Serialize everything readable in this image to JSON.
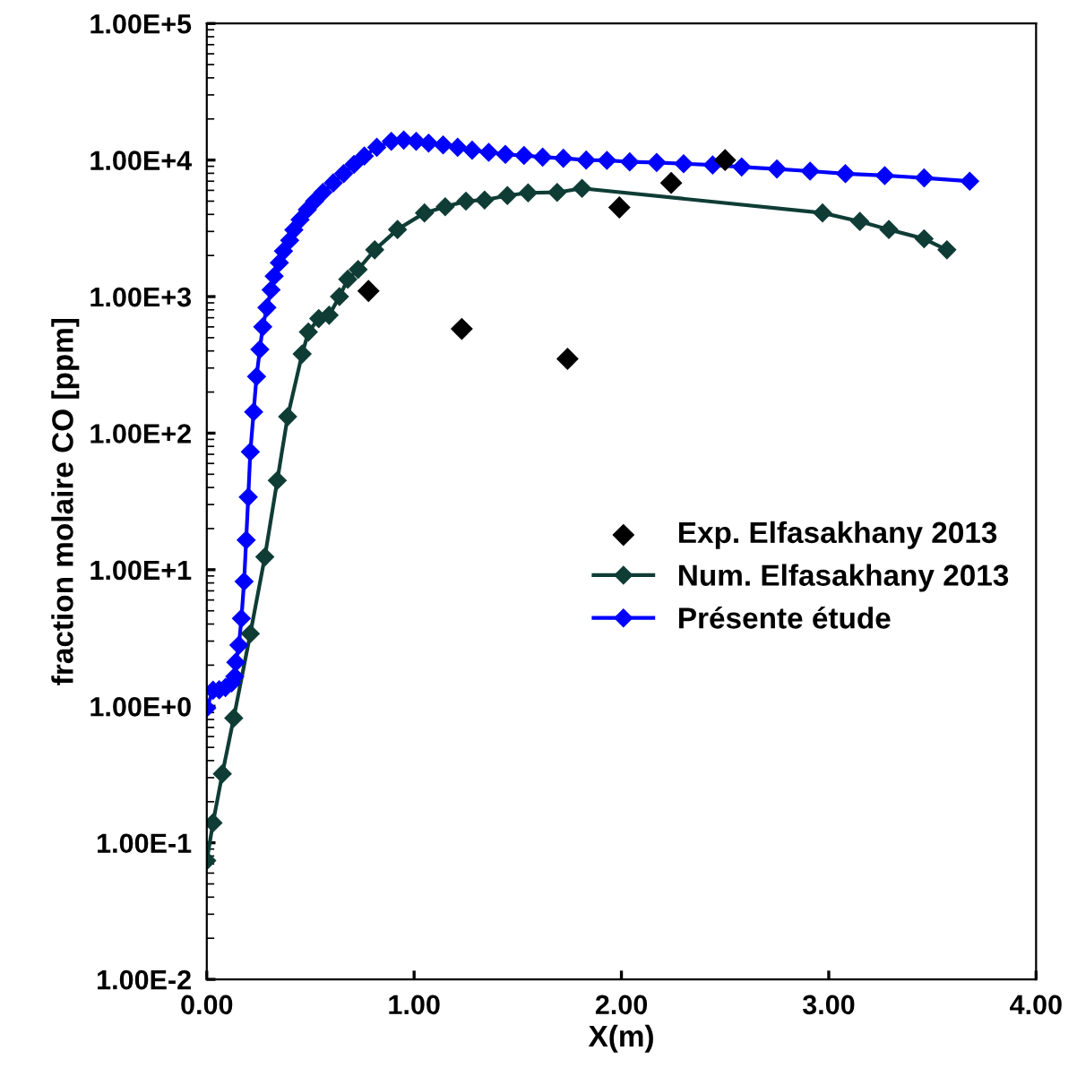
{
  "chart_data": {
    "type": "line",
    "xlabel": "X(m)",
    "ylabel": "fraction molaire CO [ppm]",
    "log": "y",
    "marker": "diamond",
    "legend": "right",
    "grid": false,
    "xlim": [
      0,
      4
    ],
    "xticks": [
      {
        "value": 0,
        "label": "0.00"
      },
      {
        "value": 1,
        "label": "1.00"
      },
      {
        "value": 2,
        "label": "2.00"
      },
      {
        "value": 3,
        "label": "3.00"
      },
      {
        "value": 4,
        "label": "4.00"
      }
    ],
    "ylim": [
      0.01,
      100000
    ],
    "yticks": [
      {
        "value": 0.01,
        "label": "1.00E-2"
      },
      {
        "value": 0.1,
        "label": "1.00E-1"
      },
      {
        "value": 1,
        "label": "1.00E+0"
      },
      {
        "value": 10,
        "label": "1.00E+1"
      },
      {
        "value": 100,
        "label": "1.00E+2"
      },
      {
        "value": 1000,
        "label": "1.00E+3"
      },
      {
        "value": 10000,
        "label": "1.00E+4"
      },
      {
        "value": 100000,
        "label": "1.00E+5"
      }
    ],
    "series": [
      {
        "name": "Exp. Elfasakhany 2013",
        "type": "scatter",
        "color": "#000000",
        "x": [
          0.78,
          1.23,
          1.74,
          1.99,
          2.24,
          2.5
        ],
        "values": [
          1100,
          580,
          350,
          4500,
          6800,
          10000
        ]
      },
      {
        "name": "Num. Elfasakhany 2013",
        "color": "#0f3d36",
        "x": [
          0,
          0.03,
          0.075,
          0.13,
          0.21,
          0.28,
          0.34,
          0.39,
          0.46,
          0.49,
          0.54,
          0.59,
          0.64,
          0.68,
          0.73,
          0.81,
          0.92,
          1.05,
          1.15,
          1.25,
          1.34,
          1.45,
          1.55,
          1.69,
          1.81,
          2.97,
          3.15,
          3.29,
          3.46,
          3.57
        ],
        "values": [
          0.074,
          0.14,
          0.32,
          0.82,
          3.4,
          12.4,
          45,
          132,
          380,
          550,
          690,
          730,
          1000,
          1340,
          1580,
          2200,
          3100,
          4100,
          4550,
          5000,
          5100,
          5500,
          5750,
          5800,
          6200,
          4100,
          3550,
          3100,
          2650,
          2200
        ]
      },
      {
        "name": "Présente étude",
        "color": "#0000ff",
        "x": [
          0,
          0.03,
          0.06,
          0.09,
          0.12,
          0.135,
          0.14,
          0.155,
          0.167,
          0.18,
          0.19,
          0.2,
          0.21,
          0.226,
          0.24,
          0.256,
          0.27,
          0.29,
          0.31,
          0.325,
          0.35,
          0.37,
          0.4,
          0.42,
          0.45,
          0.485,
          0.52,
          0.56,
          0.61,
          0.66,
          0.71,
          0.76,
          0.82,
          0.89,
          0.95,
          1.01,
          1.07,
          1.14,
          1.21,
          1.28,
          1.36,
          1.44,
          1.53,
          1.62,
          1.72,
          1.83,
          1.93,
          2.04,
          2.17,
          2.3,
          2.44,
          2.58,
          2.75,
          2.91,
          3.08,
          3.27,
          3.46,
          3.68
        ],
        "values": [
          0.97,
          1.31,
          1.32,
          1.37,
          1.48,
          1.65,
          2.1,
          2.8,
          4.4,
          8.2,
          16.5,
          34,
          73,
          143,
          260,
          410,
          600,
          830,
          1120,
          1410,
          1770,
          2150,
          2580,
          3080,
          3660,
          4340,
          5000,
          5800,
          6800,
          7950,
          9300,
          10700,
          12400,
          13700,
          14000,
          13700,
          13300,
          12900,
          12400,
          11800,
          11400,
          11000,
          10800,
          10500,
          10300,
          10000,
          9950,
          9700,
          9600,
          9400,
          9200,
          8900,
          8600,
          8300,
          7950,
          7700,
          7400,
          7000
        ]
      }
    ]
  }
}
